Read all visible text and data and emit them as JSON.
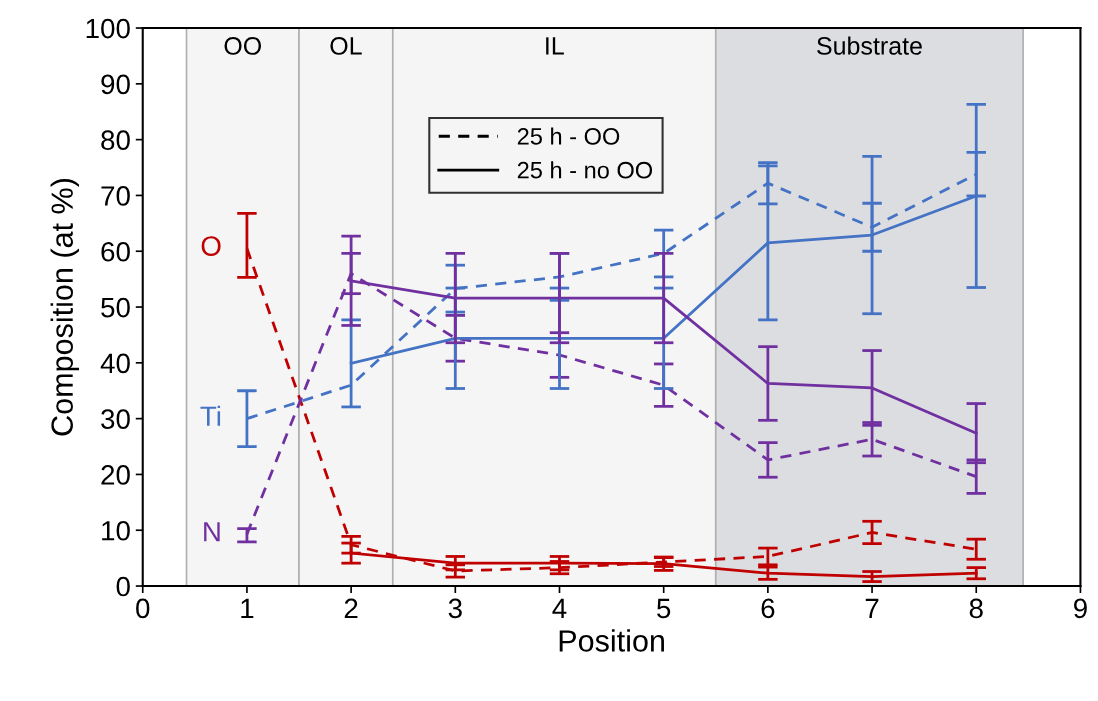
{
  "chart_data": {
    "type": "line",
    "xlabel": "Position",
    "ylabel": "Composition (at %)",
    "x": [
      1,
      2,
      3,
      4,
      5,
      6,
      7,
      8
    ],
    "xlim": [
      0,
      9
    ],
    "xticks": [
      0,
      1,
      2,
      3,
      4,
      5,
      6,
      7,
      8,
      9
    ],
    "ylim": [
      0,
      100
    ],
    "yticks": [
      0,
      10,
      20,
      30,
      40,
      50,
      60,
      70,
      80,
      90,
      100
    ],
    "grid": false,
    "legend": "top",
    "marker": "none",
    "annotations": [
      "25 h - OO",
      "25 h - no OO"
    ],
    "bands": [
      {
        "axis": "x",
        "from": 0.42,
        "to": 1.5,
        "label": "OO",
        "color": "#f5f5f5"
      },
      {
        "axis": "x",
        "from": 1.5,
        "to": 2.4,
        "label": "OL",
        "color": "#f5f5f5"
      },
      {
        "axis": "x",
        "from": 2.4,
        "to": 5.5,
        "label": "IL",
        "color": "#f5f5f5"
      },
      {
        "axis": "x",
        "from": 5.5,
        "to": 8.45,
        "label": "Substrate",
        "color": "#dcdde0"
      }
    ],
    "series": [
      {
        "name": "O",
        "color": "#c00000",
        "line_style": "dashed",
        "values": [
          60.5,
          7.4,
          2.7,
          3.3,
          4.3,
          5.3,
          9.6,
          6.6
        ],
        "errors": [
          [
            55.3,
            66.8
          ],
          1.5,
          1.1,
          1.1,
          0.8,
          1.5,
          2.0,
          1.8
        ]
      },
      {
        "name": "Ti",
        "color": "#4472c4",
        "line_style": "dashed",
        "values": [
          30.0,
          36.0,
          53.3,
          55.4,
          59.6,
          72.2,
          64.3,
          73.8
        ],
        "errors": [
          5.0,
          null,
          4.2,
          4.2,
          4.2,
          3.7,
          4.3,
          3.9
        ]
      },
      {
        "name": "N",
        "color": "#7030a0",
        "line_style": "dashed",
        "values": [
          9.3,
          56.0,
          44.4,
          41.4,
          36.0,
          22.6,
          26.3,
          19.6
        ],
        "errors": [
          [
            7.9,
            10.3
          ],
          3.6,
          4.1,
          4.0,
          3.8,
          3.1,
          3.0,
          3.0
        ]
      },
      {
        "color": "#c00000",
        "line_style": "solid",
        "values": [
          null,
          5.9,
          4.1,
          4.1,
          4.0,
          2.3,
          1.7,
          2.3
        ],
        "errors": [
          null,
          1.8,
          1.2,
          1.2,
          1.2,
          1.1,
          0.9,
          1.0
        ]
      },
      {
        "color": "#4472c4",
        "line_style": "solid",
        "values": [
          null,
          39.9,
          44.4,
          44.4,
          44.4,
          61.5,
          62.9,
          69.9
        ],
        "errors": [
          null,
          7.8,
          9.0,
          9.0,
          9.0,
          13.8,
          14.1,
          16.4
        ]
      },
      {
        "color": "#7030a0",
        "line_style": "solid",
        "values": [
          null,
          54.7,
          51.6,
          51.6,
          51.6,
          36.3,
          35.5,
          27.4
        ],
        "errors": [
          null,
          8.0,
          8.0,
          8.0,
          8.0,
          6.6,
          6.7,
          5.3
        ]
      }
    ]
  }
}
